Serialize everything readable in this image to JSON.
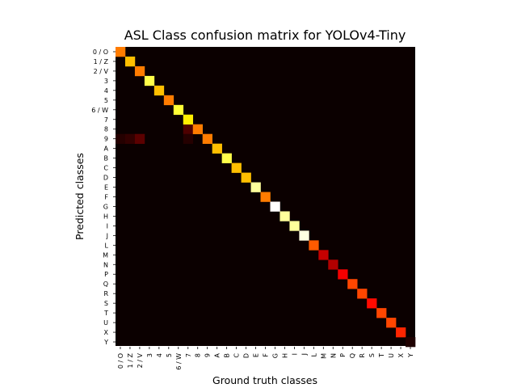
{
  "chart_data": {
    "type": "heatmap",
    "title": "ASL Class confusion matrix for YOLOv4-Tiny",
    "xlabel": "Ground truth classes",
    "ylabel": "Predicted classes",
    "categories": [
      "0 / O",
      "1 / Z",
      "2 / V",
      "3",
      "4",
      "5",
      "6 / W",
      "7",
      "8",
      "9",
      "A",
      "B",
      "C",
      "D",
      "E",
      "F",
      "G",
      "H",
      "I",
      "J",
      "L",
      "M",
      "N",
      "P",
      "Q",
      "R",
      "S",
      "T",
      "U",
      "X",
      "Y"
    ],
    "colormap": "hot",
    "value_scale": "normalized 0-1",
    "diagonal_values": [
      0.55,
      0.65,
      0.55,
      0.82,
      0.65,
      0.55,
      0.8,
      0.72,
      0.55,
      0.55,
      0.65,
      0.82,
      0.65,
      0.65,
      0.9,
      0.55,
      1.0,
      0.9,
      0.9,
      0.97,
      0.5,
      0.28,
      0.25,
      0.35,
      0.47,
      0.47,
      0.38,
      0.47,
      0.47,
      0.42,
      0.03
    ],
    "off_diagonal": [
      {
        "row": 9,
        "col": 0,
        "value": 0.04
      },
      {
        "row": 9,
        "col": 1,
        "value": 0.06
      },
      {
        "row": 9,
        "col": 2,
        "value": 0.12
      },
      {
        "row": 8,
        "col": 7,
        "value": 0.1
      },
      {
        "row": 9,
        "col": 7,
        "value": 0.04
      }
    ],
    "grid": false,
    "legend": "none"
  },
  "colors": {
    "background_cell": "#0b0000",
    "page_background": "#ffffff"
  }
}
